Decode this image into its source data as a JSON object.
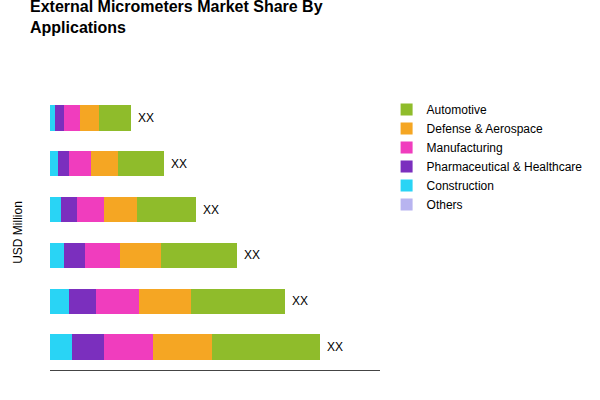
{
  "chart_data": {
    "type": "bar",
    "title": "External Micrometers Market Share By\nApplications",
    "ylabel": "USD Million",
    "orientation": "horizontal",
    "stacked": true,
    "categories": [
      null,
      null,
      null,
      null,
      null,
      null
    ],
    "series": [
      {
        "name": "Construction",
        "color": "#29d4f5",
        "values": [
          8,
          7,
          5,
          4,
          3,
          2
        ]
      },
      {
        "name": "Pharmaceutical & Healthcare",
        "color": "#7b2fbe",
        "values": [
          12,
          10,
          8,
          6,
          4,
          3
        ]
      },
      {
        "name": "Manufacturing",
        "color": "#f03dbe",
        "values": [
          18,
          16,
          13,
          10,
          8,
          6
        ]
      },
      {
        "name": "Defense & Aerospace",
        "color": "#f5a623",
        "values": [
          22,
          19,
          15,
          12,
          10,
          7
        ]
      },
      {
        "name": "Automotive",
        "color": "#8fbc2b",
        "values": [
          40,
          35,
          28,
          22,
          17,
          12
        ]
      },
      {
        "name": "Others",
        "color": "#b8b4f0",
        "values": [
          null,
          null,
          null,
          null,
          null,
          null
        ]
      }
    ],
    "annotations": [
      "XX",
      "XX",
      "XX",
      "XX",
      "XX",
      "XX"
    ],
    "xlim": [
      0,
      122
    ],
    "xticks": [],
    "tick_labels": false,
    "grid": false,
    "legend": "upper right"
  }
}
